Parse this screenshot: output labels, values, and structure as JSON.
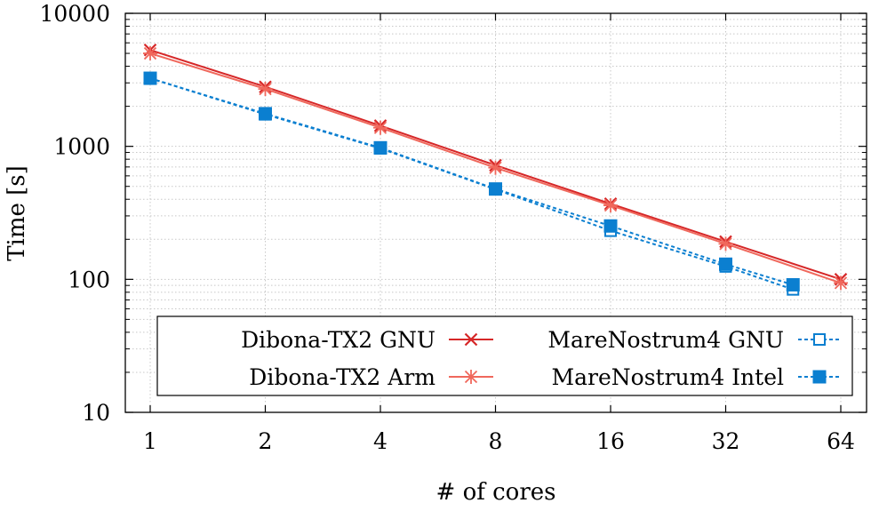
{
  "chart_data": {
    "type": "line",
    "title": "",
    "xlabel": "# of cores",
    "ylabel": "Time [s]",
    "xscale": "log2",
    "yscale": "log10",
    "xlim": [
      1,
      64
    ],
    "ylim": [
      10,
      10000
    ],
    "x_ticks": [
      "1",
      "2",
      "4",
      "8",
      "16",
      "32",
      "64"
    ],
    "y_ticks": [
      "10",
      "100",
      "1000",
      "10000"
    ],
    "grid": true,
    "legend_position": "bottom-center",
    "series": [
      {
        "name": "Dibona-TX2 GNU",
        "color": "#d62728",
        "marker": "cross",
        "dash": "solid",
        "x": [
          1,
          2,
          4,
          8,
          16,
          32,
          64
        ],
        "values": [
          5300,
          2800,
          1430,
          720,
          370,
          192,
          100
        ]
      },
      {
        "name": "Dibona-TX2 Arm",
        "color": "#f0685c",
        "marker": "star",
        "dash": "solid",
        "x": [
          1,
          2,
          4,
          8,
          16,
          32,
          64
        ],
        "values": [
          5000,
          2700,
          1380,
          690,
          360,
          185,
          94
        ]
      },
      {
        "name": "MareNostrum4 GNU",
        "color": "#0b7fd0",
        "marker": "open-square",
        "dash": "dashed",
        "x": [
          1,
          2,
          4,
          8,
          16,
          32,
          48
        ],
        "values": [
          3250,
          1740,
          965,
          475,
          232,
          125,
          84
        ]
      },
      {
        "name": "MareNostrum4 Intel",
        "color": "#0b7fd0",
        "marker": "filled-square",
        "dash": "dashed",
        "x": [
          1,
          2,
          4,
          8,
          16,
          32,
          48
        ],
        "values": [
          3250,
          1760,
          975,
          478,
          252,
          130,
          91
        ]
      }
    ]
  }
}
